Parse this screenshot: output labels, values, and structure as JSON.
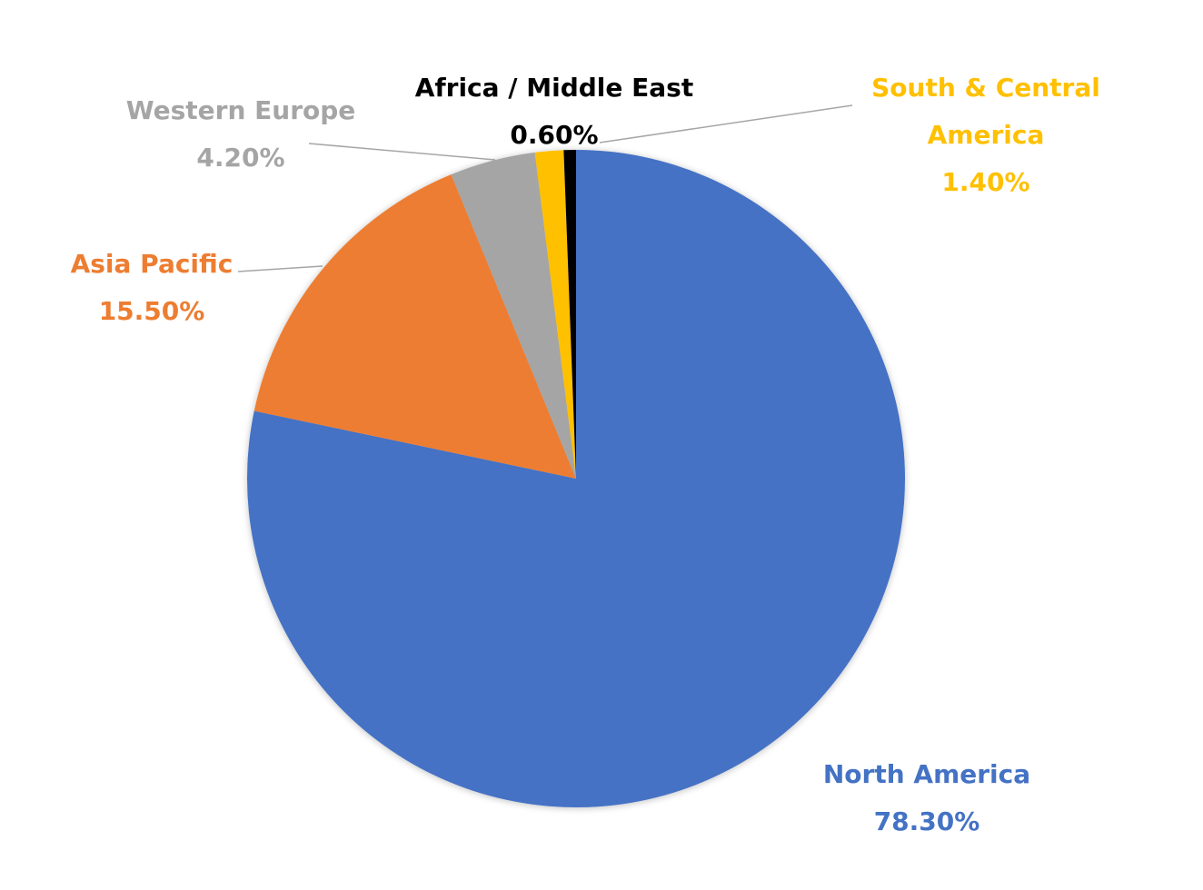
{
  "chart_data": {
    "type": "pie",
    "categories": [
      "North America",
      "Asia Pacific",
      "Western Europe",
      "South & Central America",
      "Africa / Middle East"
    ],
    "values": [
      78.3,
      15.5,
      4.2,
      1.4,
      0.6
    ],
    "value_labels": [
      "78.30%",
      "15.50%",
      "4.20%",
      "1.40%",
      "0.60%"
    ],
    "colors": [
      "#4472c4",
      "#ed7d31",
      "#a5a5a5",
      "#ffc000",
      "#000000"
    ]
  }
}
